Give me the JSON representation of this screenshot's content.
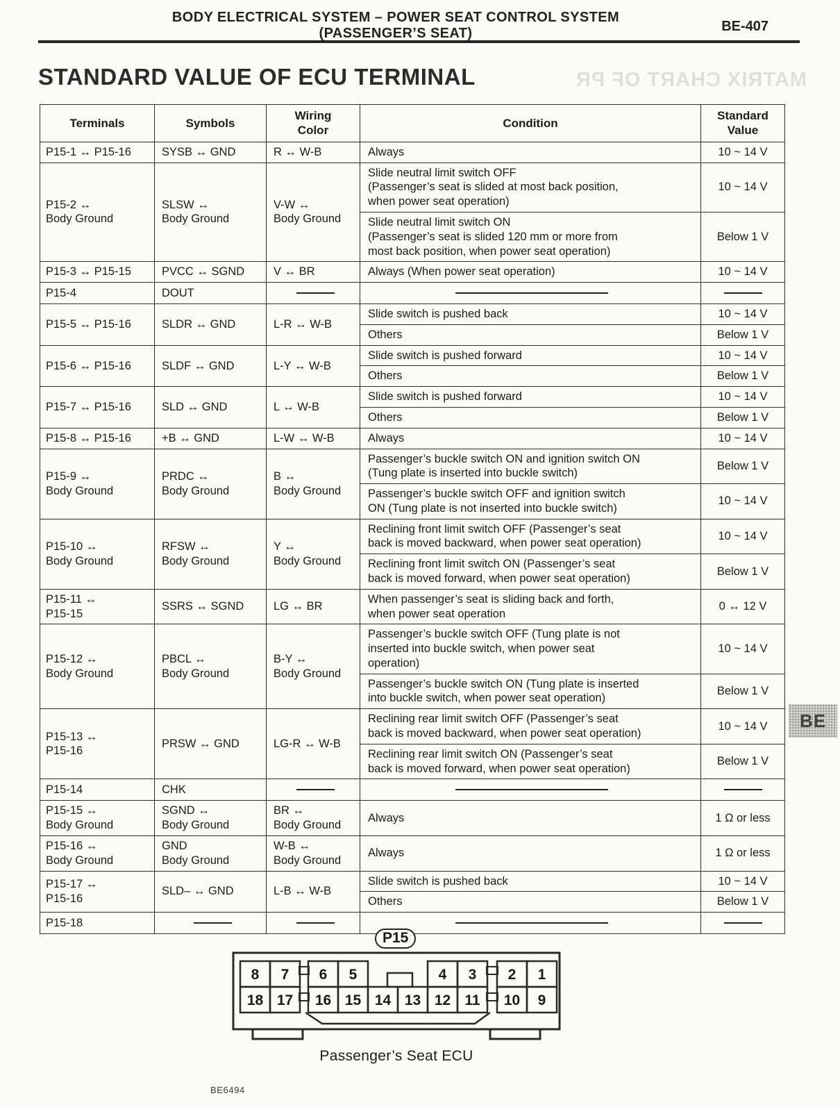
{
  "page": {
    "header_line1": "BODY ELECTRICAL SYSTEM – POWER SEAT CONTROL SYSTEM",
    "header_line2": "(PASSENGER’S SEAT)",
    "page_number": "BE-407",
    "title": "STANDARD VALUE OF ECU TERMINAL",
    "ghost_title": "MATRIX CHART OF PR",
    "side_tab": "BE"
  },
  "table": {
    "headers": [
      "Terminals",
      "Symbols",
      "Wiring\nColor",
      "Condition",
      "Standard\nValue"
    ],
    "rows": [
      {
        "terminals": "P15-1 ↔ P15-16",
        "symbols": "SYSB ↔ GND",
        "wiring": "R ↔ W-B",
        "conditions": [
          {
            "condition": "Always",
            "value": "10 ~ 14 V"
          }
        ]
      },
      {
        "terminals": "P15-2 ↔\nBody Ground",
        "symbols": "SLSW ↔\nBody Ground",
        "wiring": "V-W ↔\nBody Ground",
        "conditions": [
          {
            "condition": "Slide neutral limit switch OFF\n(Passenger’s seat is slided at most back position,\nwhen power seat operation)",
            "value": "10 ~ 14 V"
          },
          {
            "condition": "Slide neutral limit switch ON\n(Passenger’s seat is slided 120 mm or more from\nmost back position, when power seat operation)",
            "value": "Below 1 V"
          }
        ]
      },
      {
        "terminals": "P15-3 ↔ P15-15",
        "symbols": "PVCC ↔ SGND",
        "wiring": "V ↔ BR",
        "conditions": [
          {
            "condition": "Always (When power seat operation)",
            "value": "10 ~ 14 V"
          }
        ]
      },
      {
        "terminals": "P15-4",
        "symbols": "DOUT",
        "wiring": "—",
        "conditions": [
          {
            "condition": "————",
            "value": "—"
          }
        ]
      },
      {
        "terminals": "P15-5 ↔ P15-16",
        "symbols": "SLDR ↔ GND",
        "wiring": "L-R ↔ W-B",
        "conditions": [
          {
            "condition": "Slide switch is pushed back",
            "value": "10 ~ 14 V"
          },
          {
            "condition": "Others",
            "value": "Below 1 V"
          }
        ]
      },
      {
        "terminals": "P15-6 ↔ P15-16",
        "symbols": "SLDF ↔ GND",
        "wiring": "L-Y ↔ W-B",
        "conditions": [
          {
            "condition": "Slide switch is pushed forward",
            "value": "10 ~ 14 V"
          },
          {
            "condition": "Others",
            "value": "Below 1 V"
          }
        ]
      },
      {
        "terminals": "P15-7 ↔ P15-16",
        "symbols": "SLD ↔ GND",
        "wiring": "L ↔ W-B",
        "conditions": [
          {
            "condition": "Slide switch is pushed forward",
            "value": "10 ~ 14 V"
          },
          {
            "condition": "Others",
            "value": "Below 1 V"
          }
        ]
      },
      {
        "terminals": "P15-8 ↔ P15-16",
        "symbols": "+B ↔ GND",
        "wiring": "L-W ↔ W-B",
        "conditions": [
          {
            "condition": "Always",
            "value": "10 ~ 14 V"
          }
        ]
      },
      {
        "terminals": "P15-9 ↔\nBody Ground",
        "symbols": "PRDC ↔\nBody Ground",
        "wiring": "B ↔\nBody Ground",
        "conditions": [
          {
            "condition": "Passenger’s buckle switch ON and ignition switch ON\n(Tung plate is inserted into buckle switch)",
            "value": "Below 1 V"
          },
          {
            "condition": "Passenger’s buckle switch OFF and ignition switch\nON (Tung plate is not inserted into buckle switch)",
            "value": "10 ~ 14 V"
          }
        ]
      },
      {
        "terminals": "P15-10 ↔\nBody Ground",
        "symbols": "RFSW ↔\nBody Ground",
        "wiring": "Y ↔\nBody Ground",
        "conditions": [
          {
            "condition": "Reclining front limit switch OFF (Passenger’s seat\nback is moved backward, when power seat operation)",
            "value": "10 ~ 14 V"
          },
          {
            "condition": "Reclining front limit switch ON (Passenger’s seat\nback is moved forward, when power seat operation)",
            "value": "Below 1 V"
          }
        ]
      },
      {
        "terminals": "P15-11 ↔\nP15-15",
        "symbols": "SSRS ↔ SGND",
        "wiring": "LG ↔ BR",
        "conditions": [
          {
            "condition": "When passenger’s seat is sliding back and forth,\nwhen power seat operation",
            "value": "0 ↔ 12 V"
          }
        ]
      },
      {
        "terminals": "P15-12 ↔\nBody Ground",
        "symbols": "PBCL ↔\nBody Ground",
        "wiring": "B-Y ↔\nBody Ground",
        "conditions": [
          {
            "condition": "Passenger’s buckle switch OFF (Tung plate is not\ninserted into buckle switch, when power seat\noperation)",
            "value": "10 ~ 14 V"
          },
          {
            "condition": "Passenger’s buckle switch ON (Tung plate is inserted\ninto buckle switch, when power seat operation)",
            "value": "Below 1 V"
          }
        ]
      },
      {
        "terminals": "P15-13 ↔\nP15-16",
        "symbols": "PRSW ↔ GND",
        "wiring": "LG-R ↔ W-B",
        "conditions": [
          {
            "condition": "Reclining rear limit switch OFF (Passenger’s seat\nback is moved backward, when power seat operation)",
            "value": "10 ~ 14 V"
          },
          {
            "condition": "Reclining rear limit switch ON (Passenger’s seat\nback is moved forward, when power seat operation)",
            "value": "Below 1 V"
          }
        ]
      },
      {
        "terminals": "P15-14",
        "symbols": "CHK",
        "wiring": "—",
        "conditions": [
          {
            "condition": "————",
            "value": "—"
          }
        ]
      },
      {
        "terminals": "P15-15 ↔\nBody Ground",
        "symbols": "SGND ↔\nBody Ground",
        "wiring": "BR ↔\nBody Ground",
        "conditions": [
          {
            "condition": "Always",
            "value": "1 Ω or less"
          }
        ]
      },
      {
        "terminals": "P15-16 ↔\nBody Ground",
        "symbols": "GND\nBody Ground",
        "wiring": "W-B ↔\nBody Ground",
        "conditions": [
          {
            "condition": "Always",
            "value": "1 Ω or less"
          }
        ]
      },
      {
        "terminals": "P15-17 ↔\nP15-16",
        "symbols": "SLD– ↔ GND",
        "wiring": "L-B ↔ W-B",
        "conditions": [
          {
            "condition": "Slide switch is pushed back",
            "value": "10 ~ 14 V"
          },
          {
            "condition": "Others",
            "value": "Below 1 V"
          }
        ]
      },
      {
        "terminals": "P15-18",
        "symbols": "—",
        "wiring": "—",
        "conditions": [
          {
            "condition": "————",
            "value": "—"
          }
        ]
      }
    ]
  },
  "connector": {
    "label": "P15",
    "caption": "Passenger’s Seat ECU",
    "figure_code": "BE6494",
    "pins_top": [
      "8",
      "7",
      "6",
      "5",
      "4",
      "3",
      "2",
      "1"
    ],
    "pins_bottom": [
      "18",
      "17",
      "16",
      "15",
      "14",
      "13",
      "12",
      "11",
      "10",
      "9"
    ]
  }
}
